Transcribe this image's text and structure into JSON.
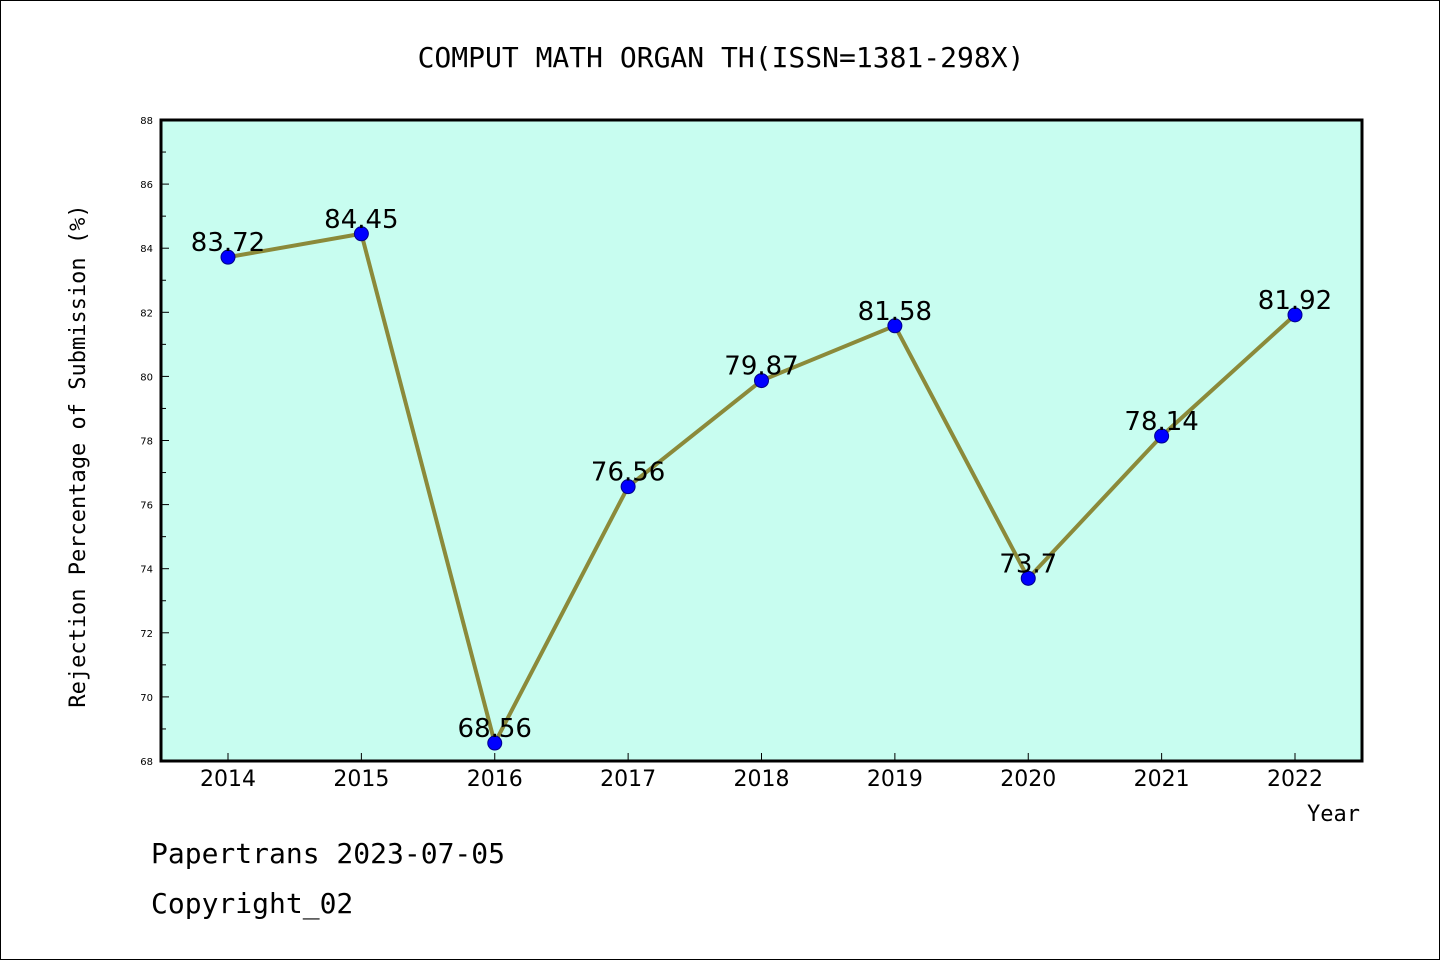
{
  "chart_data": {
    "type": "line",
    "title": "COMPUT MATH ORGAN TH(ISSN=1381-298X)",
    "xlabel": "Year",
    "ylabel": "Rejection Percentage of Submission (%)",
    "categories": [
      "2014",
      "2015",
      "2016",
      "2017",
      "2018",
      "2019",
      "2020",
      "2021",
      "2022"
    ],
    "series": [
      {
        "values": [
          83.72,
          84.45,
          68.56,
          76.56,
          79.87,
          81.58,
          73.7,
          78.14,
          81.92
        ],
        "data_labels": [
          "83.72",
          "84.45",
          "68.56",
          "76.56",
          "79.87",
          "81.58",
          "73.7",
          "78.14",
          "81.92"
        ]
      }
    ],
    "ylim": [
      68,
      88
    ],
    "yticks": [
      "68",
      "70",
      "72",
      "74",
      "76",
      "78",
      "80",
      "82",
      "84",
      "86",
      "88"
    ],
    "grid": false,
    "legend": "none",
    "colors": {
      "plot_background": "#c8fdf0",
      "line": "#8b8a3a",
      "marker": "#0000ff",
      "marker_edge": "#00008b"
    }
  },
  "footer": {
    "line1": "Papertrans 2023-07-05",
    "line2": "Copyright_02"
  }
}
